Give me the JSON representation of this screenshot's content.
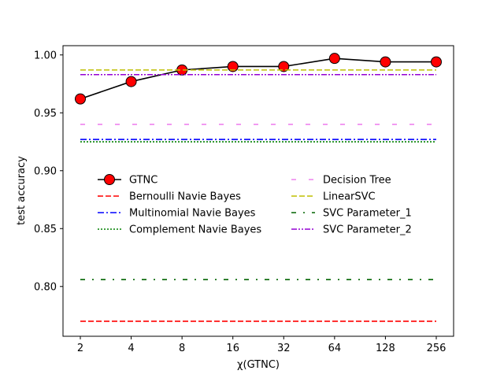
{
  "chart_data": {
    "type": "line",
    "title": "",
    "xlabel": "χ(GTNC)",
    "ylabel": "test accuracy",
    "x_scale": "log2",
    "x_ticks": [
      2,
      4,
      8,
      16,
      32,
      64,
      128,
      256
    ],
    "x_tick_labels": [
      "2",
      "4",
      "8",
      "16",
      "32",
      "64",
      "128",
      "256"
    ],
    "y_ticks": [
      0.8,
      0.85,
      0.9,
      0.95,
      1.0
    ],
    "y_tick_labels": [
      "0.80",
      "0.85",
      "0.90",
      "0.95",
      "1.00"
    ],
    "ylim": [
      0.757,
      1.008
    ],
    "grid": false,
    "legend_placement": "center-left, two columns",
    "series": [
      {
        "name": "GTNC",
        "style": "solid",
        "color": "#000000",
        "marker": "circle",
        "marker_color": "#ff0000",
        "x": [
          2,
          4,
          8,
          16,
          32,
          64,
          128,
          256
        ],
        "values": [
          0.962,
          0.977,
          0.987,
          0.99,
          0.99,
          0.997,
          0.994,
          0.994
        ]
      },
      {
        "name": "Bernoulli Navie Bayes",
        "style": "dashed",
        "color": "#ff0000",
        "x": [
          2,
          256
        ],
        "values": [
          0.77,
          0.77
        ]
      },
      {
        "name": "Multinomial Navie Bayes",
        "style": "dashdot",
        "color": "#0000ff",
        "x": [
          2,
          256
        ],
        "values": [
          0.927,
          0.927
        ]
      },
      {
        "name": "Complement Navie Bayes",
        "style": "dotted",
        "color": "#008000",
        "x": [
          2,
          256
        ],
        "values": [
          0.925,
          0.925
        ]
      },
      {
        "name": "Decision Tree",
        "style": "loose-dash",
        "color": "#ee82ee",
        "x": [
          2,
          256
        ],
        "values": [
          0.94,
          0.94
        ]
      },
      {
        "name": "LinearSVC",
        "style": "dashed",
        "color": "#bfbf00",
        "x": [
          2,
          256
        ],
        "values": [
          0.987,
          0.987
        ]
      },
      {
        "name": "SVC Parameter_1",
        "style": "loose-dashdot",
        "color": "#006400",
        "x": [
          2,
          256
        ],
        "values": [
          0.806,
          0.806
        ]
      },
      {
        "name": "SVC Parameter_2",
        "style": "dashdotdot",
        "color": "#9400d3",
        "x": [
          2,
          256
        ],
        "values": [
          0.983,
          0.983
        ]
      }
    ]
  }
}
